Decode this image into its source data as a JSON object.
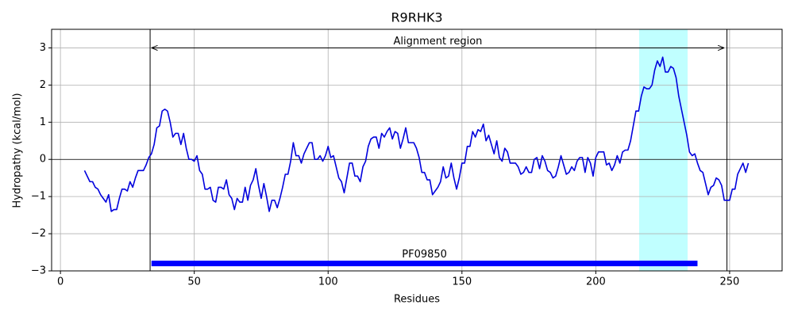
{
  "chart_data": {
    "type": "line",
    "title": "R9RHK3",
    "xlabel": "Residues",
    "ylabel": "Hydropathy (kcal/mol)",
    "x": [
      9,
      10,
      11,
      12,
      13,
      14,
      15,
      16,
      17,
      18,
      19,
      20,
      21,
      22,
      23,
      24,
      25,
      26,
      27,
      28,
      29,
      30,
      31,
      32,
      33,
      34,
      35,
      36,
      37,
      38,
      39,
      40,
      41,
      42,
      43,
      44,
      45,
      46,
      47,
      48,
      49,
      50,
      51,
      52,
      53,
      54,
      55,
      56,
      57,
      58,
      59,
      60,
      61,
      62,
      63,
      64,
      65,
      66,
      67,
      68,
      69,
      70,
      71,
      72,
      73,
      74,
      75,
      76,
      77,
      78,
      79,
      80,
      81,
      82,
      83,
      84,
      85,
      86,
      87,
      88,
      89,
      90,
      91,
      92,
      93,
      94,
      95,
      96,
      97,
      98,
      99,
      100,
      101,
      102,
      103,
      104,
      105,
      106,
      107,
      108,
      109,
      110,
      111,
      112,
      113,
      114,
      115,
      116,
      117,
      118,
      119,
      120,
      121,
      122,
      123,
      124,
      125,
      126,
      127,
      128,
      129,
      130,
      131,
      132,
      133,
      134,
      135,
      136,
      137,
      138,
      139,
      140,
      141,
      142,
      143,
      144,
      145,
      146,
      147,
      148,
      149,
      150,
      151,
      152,
      153,
      154,
      155,
      156,
      157,
      158,
      159,
      160,
      161,
      162,
      163,
      164,
      165,
      166,
      167,
      168,
      169,
      170,
      171,
      172,
      173,
      174,
      175,
      176,
      177,
      178,
      179,
      180,
      181,
      182,
      183,
      184,
      185,
      186,
      187,
      188,
      189,
      190,
      191,
      192,
      193,
      194,
      195,
      196,
      197,
      198,
      199,
      200,
      201,
      202,
      203,
      204,
      205,
      206,
      207,
      208,
      209,
      210,
      211,
      212,
      213,
      214,
      215,
      216,
      217,
      218,
      219,
      220,
      221,
      222,
      223,
      224,
      225,
      226,
      227,
      228,
      229,
      230,
      231,
      232,
      233,
      234,
      235,
      236,
      237,
      238,
      239,
      240,
      241,
      242,
      243,
      244,
      245,
      246,
      247,
      248,
      249,
      250,
      251,
      252,
      253,
      254,
      255,
      256,
      257
    ],
    "series": [
      {
        "color": "#0000dd",
        "values": [
          -0.3,
          -0.45,
          -0.6,
          -0.6,
          -0.75,
          -0.8,
          -0.95,
          -1.05,
          -1.15,
          -0.95,
          -1.4,
          -1.35,
          -1.35,
          -1.05,
          -0.8,
          -0.8,
          -0.85,
          -0.6,
          -0.75,
          -0.5,
          -0.3,
          -0.3,
          -0.3,
          -0.15,
          0.05,
          0.15,
          0.4,
          0.85,
          0.9,
          1.3,
          1.35,
          1.3,
          1.0,
          0.6,
          0.7,
          0.7,
          0.4,
          0.7,
          0.3,
          0.0,
          0.0,
          -0.05,
          0.1,
          -0.3,
          -0.4,
          -0.8,
          -0.8,
          -0.75,
          -1.1,
          -1.15,
          -0.75,
          -0.75,
          -0.8,
          -0.55,
          -0.95,
          -1.05,
          -1.35,
          -1.05,
          -1.15,
          -1.15,
          -0.75,
          -1.1,
          -0.7,
          -0.55,
          -0.25,
          -0.7,
          -1.05,
          -0.65,
          -1.0,
          -1.4,
          -1.1,
          -1.1,
          -1.3,
          -1.05,
          -0.75,
          -0.4,
          -0.4,
          -0.05,
          0.45,
          0.1,
          0.1,
          -0.1,
          0.15,
          0.3,
          0.45,
          0.45,
          0.0,
          0.0,
          0.1,
          -0.05,
          0.1,
          0.35,
          0.05,
          0.1,
          -0.2,
          -0.5,
          -0.6,
          -0.9,
          -0.5,
          -0.1,
          -0.1,
          -0.45,
          -0.45,
          -0.6,
          -0.2,
          -0.05,
          0.35,
          0.55,
          0.6,
          0.6,
          0.3,
          0.7,
          0.6,
          0.75,
          0.85,
          0.55,
          0.75,
          0.7,
          0.3,
          0.55,
          0.85,
          0.45,
          0.45,
          0.45,
          0.3,
          0.05,
          -0.35,
          -0.35,
          -0.55,
          -0.55,
          -0.95,
          -0.85,
          -0.75,
          -0.6,
          -0.2,
          -0.5,
          -0.45,
          -0.1,
          -0.5,
          -0.8,
          -0.5,
          -0.1,
          -0.1,
          0.35,
          0.35,
          0.75,
          0.6,
          0.8,
          0.75,
          0.95,
          0.5,
          0.65,
          0.4,
          0.15,
          0.5,
          0.05,
          -0.05,
          0.3,
          0.2,
          -0.1,
          -0.1,
          -0.1,
          -0.2,
          -0.4,
          -0.35,
          -0.2,
          -0.35,
          -0.35,
          0.0,
          0.05,
          -0.25,
          0.1,
          -0.05,
          -0.3,
          -0.35,
          -0.5,
          -0.45,
          -0.2,
          0.1,
          -0.15,
          -0.4,
          -0.35,
          -0.2,
          -0.3,
          -0.05,
          0.05,
          0.05,
          -0.35,
          0.05,
          -0.1,
          -0.45,
          0.05,
          0.2,
          0.2,
          0.2,
          -0.15,
          -0.1,
          -0.3,
          -0.15,
          0.1,
          -0.1,
          0.2,
          0.25,
          0.25,
          0.5,
          0.9,
          1.3,
          1.3,
          1.7,
          1.95,
          1.9,
          1.9,
          2.0,
          2.4,
          2.65,
          2.5,
          2.75,
          2.35,
          2.35,
          2.5,
          2.45,
          2.2,
          1.7,
          1.35,
          1.0,
          0.65,
          0.2,
          0.1,
          0.15,
          -0.1,
          -0.3,
          -0.35,
          -0.65,
          -0.95,
          -0.75,
          -0.7,
          -0.5,
          -0.55,
          -0.7,
          -1.1,
          -1.1,
          -1.1,
          -0.8,
          -0.8,
          -0.4,
          -0.25,
          -0.1,
          -0.35,
          -0.1
        ]
      }
    ],
    "xlim": [
      -3.3,
      269.6
    ],
    "ylim": [
      -3,
      3.5
    ],
    "xticks": [
      0,
      50,
      100,
      150,
      200,
      250
    ],
    "yticks": [
      {
        "value": -3,
        "label": "−3"
      },
      {
        "value": -2,
        "label": "−2"
      },
      {
        "value": -1,
        "label": "−1"
      },
      0,
      1,
      2,
      3
    ],
    "grid": true,
    "hline": 0,
    "highlight": {
      "start": 216.2,
      "end": 234.3,
      "color": "#c0ffff"
    },
    "vlines": [
      33.5,
      249
    ],
    "arrow": {
      "start": 34,
      "end": 248,
      "y": 3,
      "label": "Alignment region"
    },
    "domain": {
      "start": 34,
      "end": 238,
      "y": -2.8,
      "label": "PF09850",
      "color": "#0000ff"
    }
  }
}
